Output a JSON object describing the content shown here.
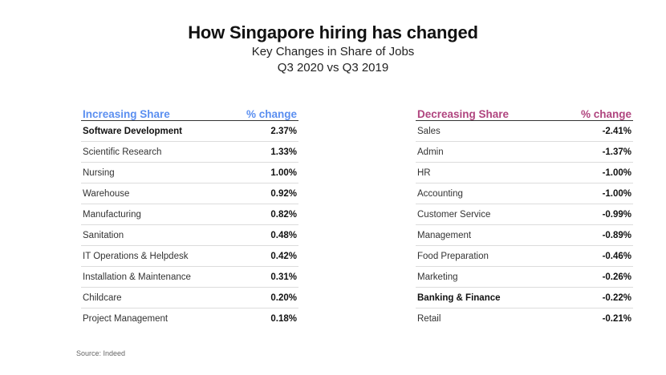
{
  "chart_data": {
    "type": "table",
    "title": "How Singapore hiring has changed",
    "subtitle_line1": "Key Changes in Share of Jobs",
    "subtitle_line2": "Q3 2020 vs Q3 2019",
    "source": "Source: Indeed",
    "colors": {
      "increasing_header": "#5b8ff0",
      "decreasing_header": "#b0457f"
    },
    "tables": [
      {
        "header_category": "Increasing Share",
        "header_value": "% change",
        "rows": [
          {
            "category": "Software Development",
            "value": "2.37%",
            "emphasis": true
          },
          {
            "category": "Scientific Research",
            "value": "1.33%",
            "emphasis": false
          },
          {
            "category": "Nursing",
            "value": "1.00%",
            "emphasis": false
          },
          {
            "category": "Warehouse",
            "value": "0.92%",
            "emphasis": false
          },
          {
            "category": "Manufacturing",
            "value": "0.82%",
            "emphasis": false
          },
          {
            "category": "Sanitation",
            "value": "0.48%",
            "emphasis": false
          },
          {
            "category": "IT Operations & Helpdesk",
            "value": "0.42%",
            "emphasis": false
          },
          {
            "category": "Installation & Maintenance",
            "value": "0.31%",
            "emphasis": false
          },
          {
            "category": "Childcare",
            "value": "0.20%",
            "emphasis": false
          },
          {
            "category": "Project Management",
            "value": "0.18%",
            "emphasis": false
          }
        ]
      },
      {
        "header_category": "Decreasing Share",
        "header_value": "% change",
        "rows": [
          {
            "category": "Sales",
            "value": "-2.41%",
            "emphasis": false
          },
          {
            "category": "Admin",
            "value": "-1.37%",
            "emphasis": false
          },
          {
            "category": "HR",
            "value": "-1.00%",
            "emphasis": false
          },
          {
            "category": "Accounting",
            "value": "-1.00%",
            "emphasis": false
          },
          {
            "category": "Customer Service",
            "value": "-0.99%",
            "emphasis": false
          },
          {
            "category": "Management",
            "value": "-0.89%",
            "emphasis": false
          },
          {
            "category": "Food Preparation",
            "value": "-0.46%",
            "emphasis": false
          },
          {
            "category": "Marketing",
            "value": "-0.26%",
            "emphasis": false
          },
          {
            "category": "Banking & Finance",
            "value": "-0.22%",
            "emphasis": true
          },
          {
            "category": "Retail",
            "value": "-0.21%",
            "emphasis": false
          }
        ]
      }
    ]
  }
}
